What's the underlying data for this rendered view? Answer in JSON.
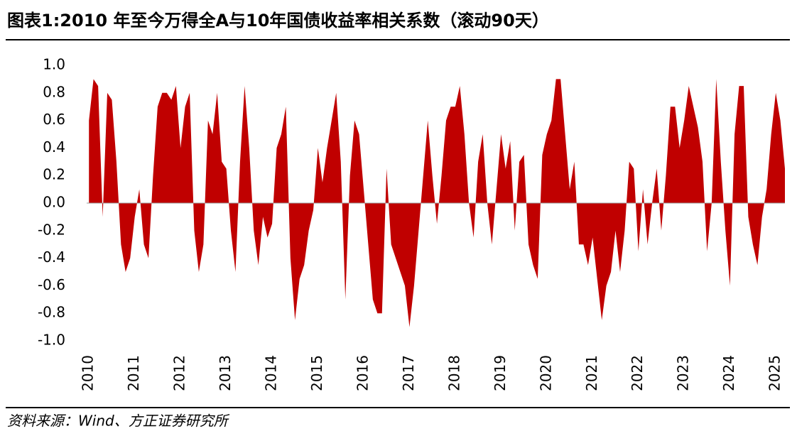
{
  "chart_data": {
    "type": "area",
    "title": "图表1:2010 年至今万得全A与10年国债收益率相关系数（滚动90天）",
    "source": "资料来源：Wind、方正证券研究所",
    "color": "#c00000",
    "xlim": [
      2009.95,
      2025.2
    ],
    "xticks": [
      2010,
      2011,
      2012,
      2013,
      2014,
      2015,
      2016,
      2017,
      2018,
      2019,
      2020,
      2021,
      2022,
      2023,
      2024,
      2025
    ],
    "ylim": [
      -1,
      1
    ],
    "yticks": [
      {
        "value": 1,
        "label": "1.0"
      },
      0.8,
      0.6,
      0.4,
      0.2,
      {
        "value": 0,
        "label": "0.0"
      },
      -0.2,
      -0.4,
      -0.6,
      -0.8,
      {
        "value": -1,
        "label": "-1.0"
      }
    ],
    "x": [
      2010.0,
      2010.1,
      2010.2,
      2010.3,
      2010.4,
      2010.5,
      2010.6,
      2010.7,
      2010.8,
      2010.9,
      2011.0,
      2011.1,
      2011.2,
      2011.3,
      2011.4,
      2011.5,
      2011.6,
      2011.7,
      2011.8,
      2011.9,
      2012.0,
      2012.1,
      2012.2,
      2012.3,
      2012.4,
      2012.5,
      2012.6,
      2012.7,
      2012.8,
      2012.9,
      2013.0,
      2013.1,
      2013.2,
      2013.3,
      2013.4,
      2013.5,
      2013.6,
      2013.7,
      2013.8,
      2013.9,
      2014.0,
      2014.1,
      2014.2,
      2014.3,
      2014.4,
      2014.5,
      2014.6,
      2014.7,
      2014.8,
      2014.9,
      2015.0,
      2015.1,
      2015.2,
      2015.3,
      2015.4,
      2015.5,
      2015.6,
      2015.7,
      2015.8,
      2015.9,
      2016.0,
      2016.1,
      2016.2,
      2016.3,
      2016.4,
      2016.5,
      2016.6,
      2016.7,
      2016.8,
      2016.9,
      2017.0,
      2017.1,
      2017.2,
      2017.3,
      2017.4,
      2017.5,
      2017.6,
      2017.7,
      2017.8,
      2017.9,
      2018.0,
      2018.1,
      2018.2,
      2018.3,
      2018.4,
      2018.5,
      2018.6,
      2018.7,
      2018.8,
      2018.9,
      2019.0,
      2019.1,
      2019.2,
      2019.3,
      2019.4,
      2019.5,
      2019.6,
      2019.7,
      2019.8,
      2019.9,
      2020.0,
      2020.1,
      2020.2,
      2020.3,
      2020.4,
      2020.5,
      2020.6,
      2020.7,
      2020.8,
      2020.9,
      2021.0,
      2021.1,
      2021.2,
      2021.3,
      2021.4,
      2021.5,
      2021.6,
      2021.7,
      2021.8,
      2021.9,
      2022.0,
      2022.1,
      2022.2,
      2022.3,
      2022.4,
      2022.5,
      2022.6,
      2022.7,
      2022.8,
      2022.9,
      2023.0,
      2023.1,
      2023.2,
      2023.3,
      2023.4,
      2023.5,
      2023.6,
      2023.7,
      2023.8,
      2023.9,
      2024.0,
      2024.1,
      2024.2,
      2024.3,
      2024.4,
      2024.5,
      2024.6,
      2024.7,
      2024.8,
      2024.9,
      2025.0,
      2025.1,
      2025.2
    ],
    "values": [
      0.6,
      0.9,
      0.85,
      -0.1,
      0.8,
      0.75,
      0.3,
      -0.3,
      -0.5,
      -0.4,
      -0.1,
      0.1,
      -0.3,
      -0.4,
      0.2,
      0.7,
      0.8,
      0.8,
      0.75,
      0.85,
      0.4,
      0.7,
      0.8,
      -0.2,
      -0.5,
      -0.3,
      0.6,
      0.5,
      0.8,
      0.3,
      0.25,
      -0.2,
      -0.5,
      0.3,
      0.85,
      0.4,
      -0.2,
      -0.45,
      -0.1,
      -0.25,
      -0.15,
      0.4,
      0.5,
      0.7,
      -0.4,
      -0.85,
      -0.55,
      -0.45,
      -0.2,
      -0.05,
      0.4,
      0.15,
      0.4,
      0.6,
      0.8,
      0.3,
      -0.7,
      0.2,
      0.6,
      0.5,
      0.1,
      -0.3,
      -0.7,
      -0.8,
      -0.8,
      0.25,
      -0.3,
      -0.4,
      -0.5,
      -0.6,
      -0.9,
      -0.6,
      -0.2,
      0.2,
      0.6,
      0.2,
      -0.15,
      0.2,
      0.6,
      0.7,
      0.7,
      0.85,
      0.5,
      0.0,
      -0.25,
      0.3,
      0.5,
      0.0,
      -0.3,
      0.1,
      0.5,
      0.25,
      0.45,
      -0.2,
      0.3,
      0.35,
      -0.3,
      -0.45,
      -0.55,
      0.35,
      0.5,
      0.6,
      0.9,
      0.9,
      0.5,
      0.1,
      0.3,
      -0.3,
      -0.3,
      -0.45,
      -0.25,
      -0.55,
      -0.85,
      -0.6,
      -0.5,
      -0.2,
      -0.5,
      -0.2,
      0.3,
      0.25,
      -0.35,
      0.1,
      -0.3,
      0.0,
      0.25,
      -0.2,
      0.2,
      0.7,
      0.7,
      0.4,
      0.6,
      0.85,
      0.7,
      0.55,
      0.3,
      -0.35,
      0.0,
      0.9,
      0.3,
      -0.2,
      -0.6,
      0.5,
      0.85,
      0.85,
      -0.1,
      -0.3,
      -0.45,
      -0.1,
      0.1,
      0.5,
      0.8,
      0.6,
      0.25
    ]
  }
}
